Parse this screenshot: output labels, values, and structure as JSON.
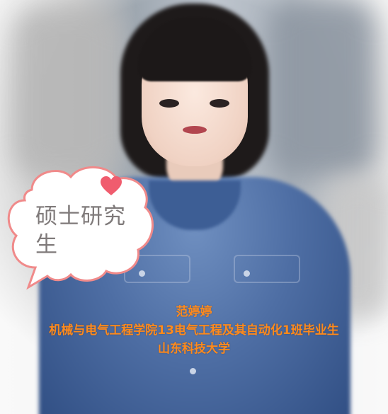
{
  "badge": {
    "text_line1": "硕士研究",
    "text_line2": "生"
  },
  "caption": {
    "name": "范婷婷",
    "department": "机械与电气工程学院13电气工程及其自动化1班毕业生",
    "university": "山东科技大学"
  },
  "colors": {
    "caption": "#ff8a1c",
    "bubble_border": "#f08a8a",
    "heart": "#f05c6e",
    "badge_text": "#7f7a7a"
  }
}
